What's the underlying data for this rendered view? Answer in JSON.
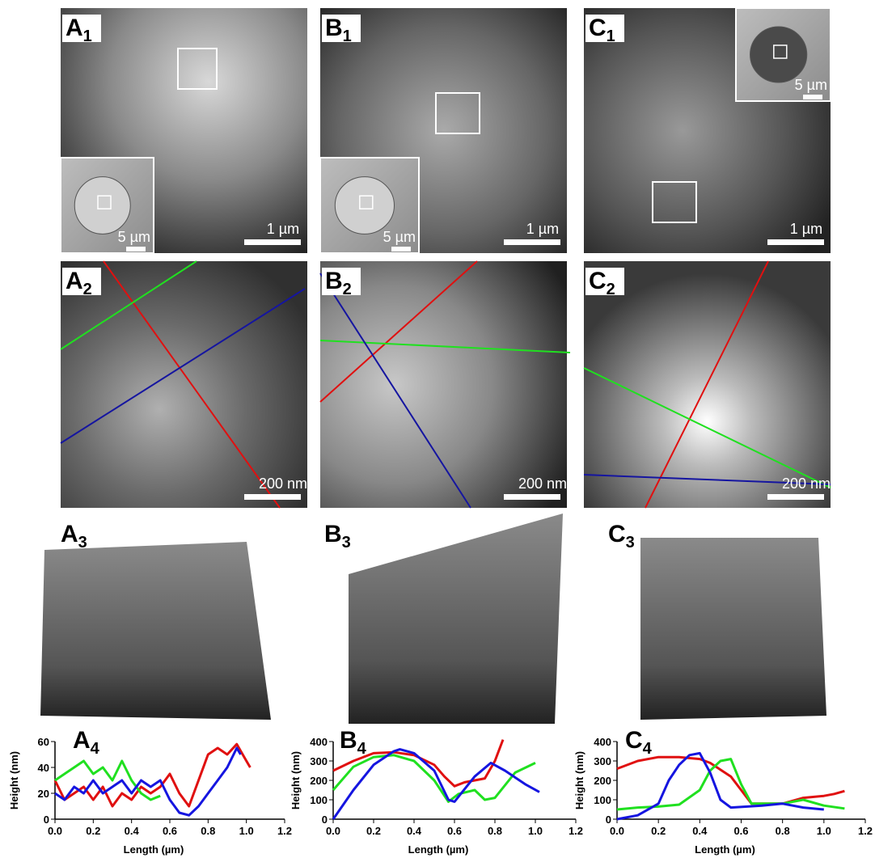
{
  "panels": [
    {
      "letter": "A",
      "sub": "1",
      "scale": "1 µm",
      "inset_scale": "5 µm"
    },
    {
      "letter": "B",
      "sub": "1",
      "scale": "1 µm",
      "inset_scale": "5 µm"
    },
    {
      "letter": "C",
      "sub": "1",
      "scale": "1 µm",
      "inset_scale": "5 µm"
    },
    {
      "letter": "A",
      "sub": "2",
      "scale": "200 nm"
    },
    {
      "letter": "B",
      "sub": "2",
      "scale": "200 nm"
    },
    {
      "letter": "C",
      "sub": "2",
      "scale": "200 nm"
    },
    {
      "letter": "A",
      "sub": "3"
    },
    {
      "letter": "B",
      "sub": "3"
    },
    {
      "letter": "C",
      "sub": "3"
    }
  ],
  "chart_data": [
    {
      "type": "line",
      "letter": "A",
      "sub": "4",
      "x_label": "Length (µm)",
      "y_label": "Height (nm)",
      "xlim": [
        0,
        1.2
      ],
      "xticks": [
        {
          "value": 0,
          "label": "0.0"
        },
        {
          "value": 0.2,
          "label": "0.2"
        },
        {
          "value": 0.4,
          "label": "0.4"
        },
        {
          "value": 0.6,
          "label": "0.6"
        },
        {
          "value": 0.8,
          "label": "0.8"
        },
        {
          "value": 1,
          "label": "1.0"
        },
        {
          "value": 1.2,
          "label": "1.2"
        }
      ],
      "ylim": [
        0,
        60
      ],
      "yticks": [
        0,
        20,
        40,
        60
      ],
      "series": [
        {
          "color": "#e01010",
          "x": [
            0,
            0.05,
            0.1,
            0.15,
            0.2,
            0.25,
            0.3,
            0.35,
            0.4,
            0.45,
            0.5,
            0.55,
            0.6,
            0.65,
            0.7,
            0.75,
            0.8,
            0.85,
            0.9,
            0.95,
            1.0,
            1.02
          ],
          "values": [
            30,
            15,
            20,
            25,
            15,
            25,
            10,
            20,
            15,
            25,
            20,
            25,
            35,
            20,
            10,
            30,
            50,
            55,
            50,
            58,
            45,
            40
          ]
        },
        {
          "color": "#20e020",
          "x": [
            0,
            0.05,
            0.1,
            0.15,
            0.2,
            0.25,
            0.3,
            0.35,
            0.4,
            0.45,
            0.5,
            0.55
          ],
          "values": [
            30,
            35,
            40,
            45,
            35,
            40,
            30,
            45,
            30,
            20,
            15,
            18
          ]
        },
        {
          "color": "#1515e0",
          "x": [
            0,
            0.05,
            0.1,
            0.15,
            0.2,
            0.25,
            0.3,
            0.35,
            0.4,
            0.45,
            0.5,
            0.55,
            0.6,
            0.65,
            0.7,
            0.75,
            0.8,
            0.85,
            0.9,
            0.95,
            0.97
          ],
          "values": [
            20,
            15,
            25,
            20,
            30,
            20,
            25,
            30,
            20,
            30,
            25,
            30,
            15,
            5,
            3,
            10,
            20,
            30,
            40,
            55,
            50
          ]
        }
      ]
    },
    {
      "type": "line",
      "letter": "B",
      "sub": "4",
      "x_label": "Length (µm)",
      "y_label": "Height (nm)",
      "xlim": [
        0,
        1.2
      ],
      "xticks": [
        {
          "value": 0,
          "label": "0.0"
        },
        {
          "value": 0.2,
          "label": "0.2"
        },
        {
          "value": 0.4,
          "label": "0.4"
        },
        {
          "value": 0.6,
          "label": "0.6"
        },
        {
          "value": 0.8,
          "label": "0.8"
        },
        {
          "value": 1,
          "label": "1.0"
        },
        {
          "value": 1.2,
          "label": "1.2"
        }
      ],
      "ylim": [
        0,
        400
      ],
      "yticks": [
        0,
        100,
        200,
        300,
        400
      ],
      "series": [
        {
          "color": "#e01010",
          "x": [
            0,
            0.1,
            0.2,
            0.3,
            0.4,
            0.5,
            0.55,
            0.6,
            0.65,
            0.7,
            0.75,
            0.8,
            0.84
          ],
          "values": [
            250,
            300,
            340,
            345,
            330,
            280,
            220,
            170,
            190,
            200,
            210,
            300,
            410
          ]
        },
        {
          "color": "#20e020",
          "x": [
            0,
            0.1,
            0.2,
            0.3,
            0.4,
            0.5,
            0.57,
            0.62,
            0.7,
            0.75,
            0.8,
            0.9,
            1.0
          ],
          "values": [
            150,
            270,
            320,
            330,
            300,
            200,
            90,
            130,
            150,
            100,
            110,
            240,
            290
          ]
        },
        {
          "color": "#1515e0",
          "x": [
            0,
            0.1,
            0.2,
            0.3,
            0.33,
            0.4,
            0.5,
            0.57,
            0.6,
            0.7,
            0.78,
            0.85,
            0.95,
            1.02
          ],
          "values": [
            0,
            150,
            280,
            350,
            360,
            340,
            250,
            100,
            90,
            220,
            290,
            250,
            180,
            140
          ]
        }
      ]
    },
    {
      "type": "line",
      "letter": "C",
      "sub": "4",
      "x_label": "Length (µm)",
      "y_label": "Height (nm)",
      "xlim": [
        0,
        1.2
      ],
      "xticks": [
        {
          "value": 0,
          "label": "0.0"
        },
        {
          "value": 0.2,
          "label": "0.2"
        },
        {
          "value": 0.4,
          "label": "0.4"
        },
        {
          "value": 0.6,
          "label": "0.6"
        },
        {
          "value": 0.8,
          "label": "0.8"
        },
        {
          "value": 1,
          "label": "1.0"
        },
        {
          "value": 1.2,
          "label": "1.2"
        }
      ],
      "ylim": [
        0,
        400
      ],
      "yticks": [
        0,
        100,
        200,
        300,
        400
      ],
      "series": [
        {
          "color": "#e01010",
          "x": [
            0,
            0.1,
            0.2,
            0.3,
            0.4,
            0.45,
            0.55,
            0.6,
            0.65,
            0.8,
            0.9,
            1.0,
            1.05,
            1.1
          ],
          "values": [
            260,
            300,
            320,
            320,
            310,
            290,
            220,
            150,
            80,
            80,
            110,
            120,
            130,
            145
          ]
        },
        {
          "color": "#20e020",
          "x": [
            0,
            0.1,
            0.2,
            0.3,
            0.4,
            0.45,
            0.5,
            0.55,
            0.6,
            0.65,
            0.8,
            0.9,
            1.0,
            1.1
          ],
          "values": [
            50,
            60,
            65,
            75,
            150,
            250,
            300,
            310,
            180,
            80,
            80,
            100,
            70,
            55
          ]
        },
        {
          "color": "#1515e0",
          "x": [
            0,
            0.1,
            0.2,
            0.25,
            0.3,
            0.35,
            0.4,
            0.45,
            0.5,
            0.55,
            0.7,
            0.8,
            0.9,
            1.0
          ],
          "values": [
            0,
            20,
            80,
            200,
            280,
            330,
            340,
            240,
            100,
            60,
            70,
            80,
            60,
            50
          ]
        }
      ]
    }
  ]
}
